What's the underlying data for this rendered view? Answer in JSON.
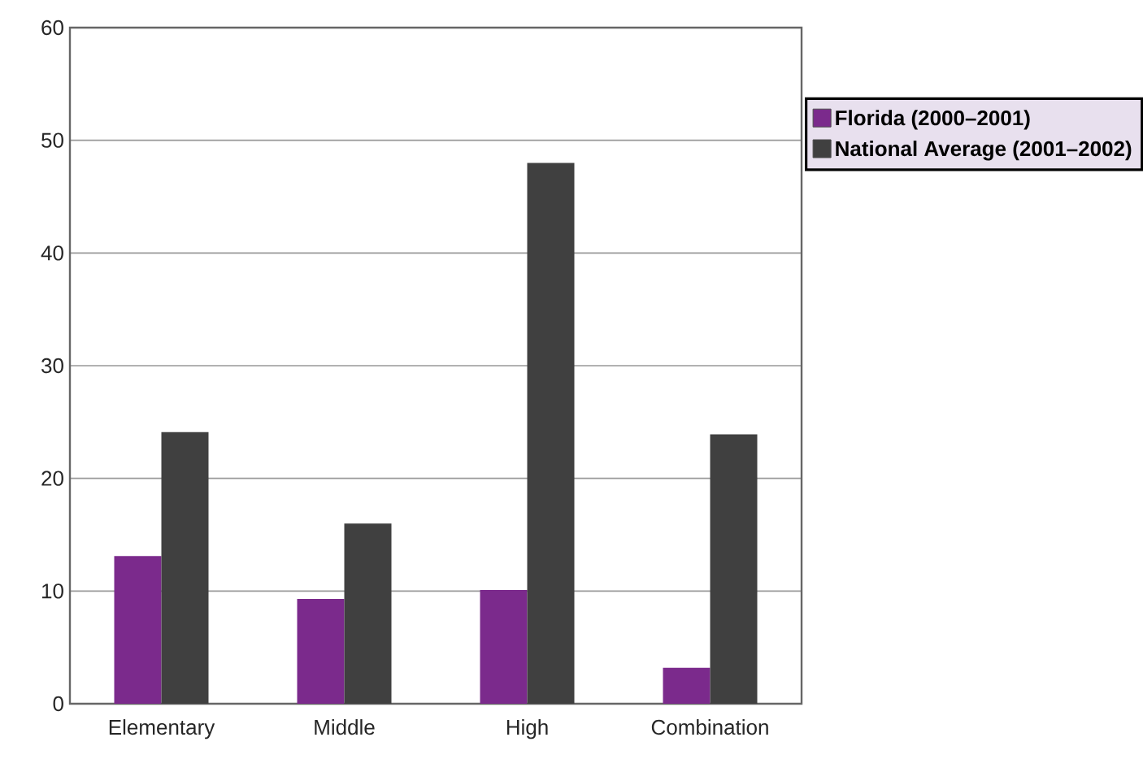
{
  "chart_data": {
    "type": "bar",
    "categories": [
      "Elementary",
      "Middle",
      "High",
      "Combination"
    ],
    "series": [
      {
        "name": "Florida (2000–2001)",
        "color": "#7b2a8c",
        "values": [
          13.1,
          9.3,
          10.1,
          3.2
        ]
      },
      {
        "name": "National Average (2001–2002)",
        "color": "#404040",
        "values": [
          24.1,
          16.0,
          48.0,
          23.9
        ]
      }
    ],
    "ylim": [
      0,
      60
    ],
    "yticks": [
      0,
      10,
      20,
      30,
      40,
      50,
      60
    ],
    "grid": "y",
    "legend": "top right"
  }
}
